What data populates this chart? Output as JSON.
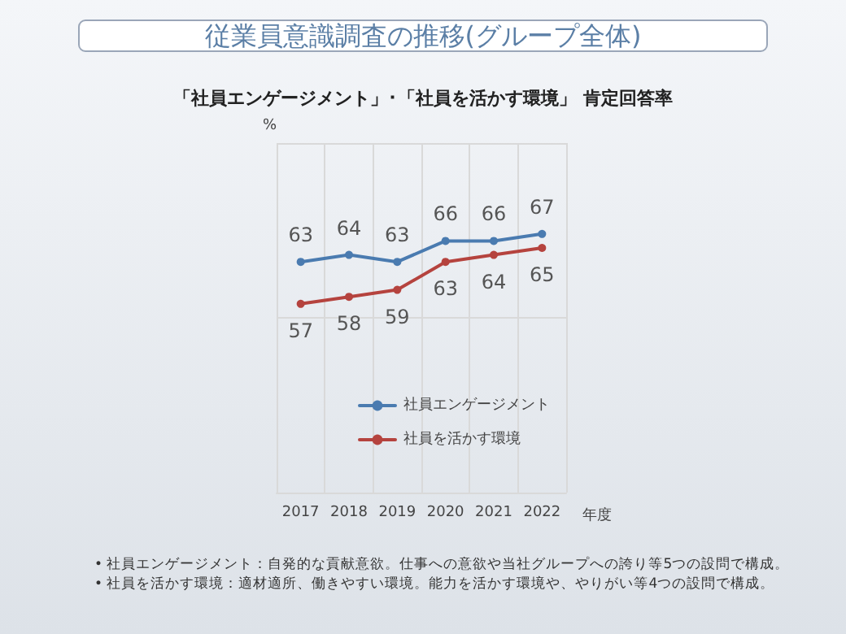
{
  "chart_data": {
    "type": "line",
    "title": "従業員意識調査の推移(グループ全体)",
    "subtitle": "「社員エンゲージメント」･「社員を活かす環境」 肯定回答率",
    "xlabel": "年度",
    "ylabel": "%",
    "categories": [
      "2017",
      "2018",
      "2019",
      "2020",
      "2021",
      "2022"
    ],
    "series": [
      {
        "name": "社員エンゲージメント",
        "color": "#4a7bb0",
        "values": [
          63,
          64,
          63,
          66,
          66,
          67
        ]
      },
      {
        "name": "社員を活かす環境",
        "color": "#b5433e",
        "values": [
          57,
          58,
          59,
          63,
          64,
          65
        ]
      }
    ],
    "ylim": [
      30,
      80
    ],
    "yticks": [
      {
        "value": 30,
        "label": null
      },
      {
        "value": 55,
        "label": null
      },
      {
        "value": 80,
        "label": null
      }
    ],
    "grid": true,
    "legend": "bottom",
    "marker": "circle",
    "line_style": "solid",
    "data_labels": true,
    "annotations": [
      "• 社員エンゲージメント：自発的な貢献意欲。仕事への意欲や当社グループへの誇り等5つの設問で構成。",
      "• 社員を活かす環境：適材適所、働きやすい環境。能力を活かす環境や、やりがい等4つの設問で構成。"
    ]
  }
}
